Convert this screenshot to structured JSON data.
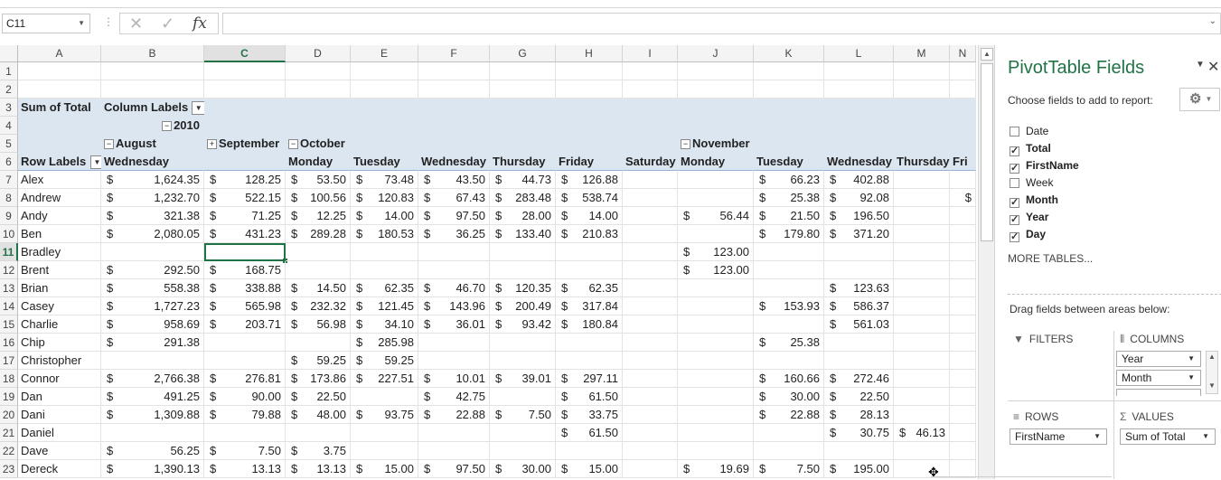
{
  "formula_bar": {
    "name_box": "C11",
    "cancel_icon": "✕",
    "enter_icon": "✓",
    "fx_label": "fx",
    "formula": ""
  },
  "columns": [
    {
      "letter": "A",
      "w": 92
    },
    {
      "letter": "B",
      "w": 114
    },
    {
      "letter": "C",
      "w": 90
    },
    {
      "letter": "D",
      "w": 72
    },
    {
      "letter": "E",
      "w": 75
    },
    {
      "letter": "F",
      "w": 79
    },
    {
      "letter": "G",
      "w": 73
    },
    {
      "letter": "H",
      "w": 74
    },
    {
      "letter": "I",
      "w": 61
    },
    {
      "letter": "J",
      "w": 84
    },
    {
      "letter": "K",
      "w": 78
    },
    {
      "letter": "L",
      "w": 77
    },
    {
      "letter": "M",
      "w": 62
    },
    {
      "letter": "N",
      "w": 49
    }
  ],
  "selected_column": "C",
  "selected_row": 11,
  "header_rows": [
    {
      "row": "1",
      "cells": []
    },
    {
      "row": "2",
      "cells": []
    },
    {
      "row": "3",
      "pt": true,
      "cells": [
        {
          "col": 0,
          "text": "Sum of Total"
        },
        {
          "col": 1,
          "text": "Column Labels",
          "dropdown": true
        }
      ]
    },
    {
      "row": "4",
      "pt": true,
      "cells": [
        {
          "col": 1,
          "text": "2010",
          "collapse": "−",
          "align": "right"
        }
      ]
    },
    {
      "row": "5",
      "pt": true,
      "cells": [
        {
          "col": 1,
          "text": "August",
          "collapse": "−"
        },
        {
          "col": 2,
          "text": "September",
          "collapse": "+"
        },
        {
          "col": 3,
          "text": "October",
          "collapse": "−"
        },
        {
          "col": 9,
          "text": "November",
          "collapse": "−"
        }
      ]
    },
    {
      "row": "6",
      "pt": true,
      "bottom": true,
      "cells": [
        {
          "col": 0,
          "text": "Row Labels",
          "filter": true
        },
        {
          "col": 1,
          "text": "Wednesday"
        },
        {
          "col": 3,
          "text": "Monday"
        },
        {
          "col": 4,
          "text": "Tuesday"
        },
        {
          "col": 5,
          "text": "Wednesday"
        },
        {
          "col": 6,
          "text": "Thursday"
        },
        {
          "col": 7,
          "text": "Friday"
        },
        {
          "col": 8,
          "text": "Saturday"
        },
        {
          "col": 9,
          "text": "Monday"
        },
        {
          "col": 10,
          "text": "Tuesday"
        },
        {
          "col": 11,
          "text": "Wednesday"
        },
        {
          "col": 12,
          "text": "Thursday"
        },
        {
          "col": 13,
          "text": "Fri"
        }
      ]
    }
  ],
  "data_rows": [
    {
      "row": "7",
      "label": "Alex",
      "vals": {
        "1": "1,624.35",
        "2": "128.25",
        "3": "53.50",
        "4": "73.48",
        "5": "43.50",
        "6": "44.73",
        "7": "126.88",
        "10": "66.23",
        "11": "402.88"
      }
    },
    {
      "row": "8",
      "label": "Andrew",
      "vals": {
        "1": "1,232.70",
        "2": "522.15",
        "3": "100.56",
        "4": "120.83",
        "5": "67.43",
        "6": "283.48",
        "7": "538.74",
        "10": "25.38",
        "11": "92.08"
      },
      "dollar_only": {
        "13": true
      }
    },
    {
      "row": "9",
      "label": "Andy",
      "vals": {
        "1": "321.38",
        "2": "71.25",
        "3": "12.25",
        "4": "14.00",
        "5": "97.50",
        "6": "28.00",
        "7": "14.00",
        "9": "56.44",
        "10": "21.50",
        "11": "196.50"
      }
    },
    {
      "row": "10",
      "label": "Ben",
      "vals": {
        "1": "2,080.05",
        "2": "431.23",
        "3": "289.28",
        "4": "180.53",
        "5": "36.25",
        "6": "133.40",
        "7": "210.83",
        "10": "179.80",
        "11": "371.20"
      }
    },
    {
      "row": "11",
      "label": "Bradley",
      "vals": {
        "9": "123.00"
      }
    },
    {
      "row": "12",
      "label": "Brent",
      "vals": {
        "1": "292.50",
        "2": "168.75",
        "9": "123.00"
      }
    },
    {
      "row": "13",
      "label": "Brian",
      "vals": {
        "1": "558.38",
        "2": "338.88",
        "3": "14.50",
        "4": "62.35",
        "5": "46.70",
        "6": "120.35",
        "7": "62.35",
        "11": "123.63"
      }
    },
    {
      "row": "14",
      "label": "Casey",
      "vals": {
        "1": "1,727.23",
        "2": "565.98",
        "3": "232.32",
        "4": "121.45",
        "5": "143.96",
        "6": "200.49",
        "7": "317.84",
        "10": "153.93",
        "11": "586.37"
      }
    },
    {
      "row": "15",
      "label": "Charlie",
      "vals": {
        "1": "958.69",
        "2": "203.71",
        "3": "56.98",
        "4": "34.10",
        "5": "36.01",
        "6": "93.42",
        "7": "180.84",
        "11": "561.03"
      }
    },
    {
      "row": "16",
      "label": "Chip",
      "vals": {
        "1": "291.38",
        "4": "285.98",
        "10": "25.38"
      }
    },
    {
      "row": "17",
      "label": "Christopher",
      "vals": {
        "3": "59.25",
        "4": "59.25"
      }
    },
    {
      "row": "18",
      "label": "Connor",
      "vals": {
        "1": "2,766.38",
        "2": "276.81",
        "3": "173.86",
        "4": "227.51",
        "5": "10.01",
        "6": "39.01",
        "7": "297.11",
        "10": "160.66",
        "11": "272.46"
      }
    },
    {
      "row": "19",
      "label": "Dan",
      "vals": {
        "1": "491.25",
        "2": "90.00",
        "3": "22.50",
        "5": "42.75",
        "7": "61.50",
        "10": "30.00",
        "11": "22.50"
      }
    },
    {
      "row": "20",
      "label": "Dani",
      "vals": {
        "1": "1,309.88",
        "2": "79.88",
        "3": "48.00",
        "4": "93.75",
        "5": "22.88",
        "6": "7.50",
        "7": "33.75",
        "10": "22.88",
        "11": "28.13"
      }
    },
    {
      "row": "21",
      "label": "Daniel",
      "vals": {
        "7": "61.50",
        "11": "30.75",
        "12": "46.13"
      }
    },
    {
      "row": "22",
      "label": "Dave",
      "vals": {
        "1": "56.25",
        "2": "7.50",
        "3": "3.75"
      }
    },
    {
      "row": "23",
      "label": "Dereck",
      "vals": {
        "1": "1,390.13",
        "2": "13.13",
        "3": "13.13",
        "4": "15.00",
        "5": "97.50",
        "6": "30.00",
        "7": "15.00",
        "9": "19.69",
        "10": "7.50",
        "11": "195.00"
      }
    }
  ],
  "currency": "$",
  "panel": {
    "title": "PivotTable Fields",
    "choose_label": "Choose fields to add to report:",
    "fields": [
      {
        "name": "Date",
        "checked": false
      },
      {
        "name": "Total",
        "checked": true
      },
      {
        "name": "FirstName",
        "checked": true
      },
      {
        "name": "Week",
        "checked": false
      },
      {
        "name": "Month",
        "checked": true
      },
      {
        "name": "Year",
        "checked": true
      },
      {
        "name": "Day",
        "checked": true
      }
    ],
    "more_tables": "MORE TABLES...",
    "drag_label": "Drag fields between areas below:",
    "filters_label": "FILTERS",
    "columns_label": "COLUMNS",
    "rows_label": "ROWS",
    "values_label": "VALUES",
    "columns_items": [
      "Year",
      "Month"
    ],
    "rows_item": "FirstName",
    "values_item": "Sum of Total"
  }
}
